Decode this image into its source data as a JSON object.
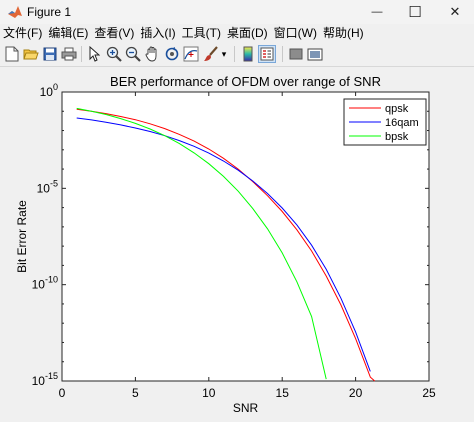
{
  "window": {
    "title": "Figure 1",
    "minimize_glyph": "—",
    "maximize_glyph": "☐",
    "close_glyph": "✕"
  },
  "menu": {
    "items": [
      "文件(F)",
      "编辑(E)",
      "查看(V)",
      "插入(I)",
      "工具(T)",
      "桌面(D)",
      "窗口(W)",
      "帮助(H)"
    ]
  },
  "toolbar": {
    "buttons": [
      "new-figure-icon",
      "open-file-icon",
      "save-icon",
      "print-icon",
      "pointer-icon",
      "zoom-in-icon",
      "zoom-out-icon",
      "pan-icon",
      "rotate-icon",
      "data-cursor-icon",
      "brush-icon",
      "colorbar-icon",
      "legend-icon",
      "hide-plot-tools-icon",
      "show-plot-tools-icon"
    ],
    "dropdown_glyph": "▾"
  },
  "chart_data": {
    "type": "line",
    "title": "BER performance of OFDM over range of SNR",
    "xlabel": "SNR",
    "ylabel": "Bit Error Rate",
    "xlim": [
      0,
      25
    ],
    "ylim_log10": [
      -15,
      0
    ],
    "yscale": "log",
    "grid": false,
    "x_ticks": [
      0,
      5,
      10,
      15,
      20,
      25
    ],
    "x_tick_labels": [
      "0",
      "5",
      "10",
      "15",
      "20",
      "25"
    ],
    "y_ticks_log10": [
      0,
      -5,
      -10,
      -15
    ],
    "y_tick_labels": [
      {
        "base": "10",
        "exp": "0"
      },
      {
        "base": "10",
        "exp": "-5"
      },
      {
        "base": "10",
        "exp": "-10"
      },
      {
        "base": "10",
        "exp": "-15"
      }
    ],
    "legend_position": "top-right",
    "series": [
      {
        "name": "qpsk",
        "color": "#ff0000",
        "x": [
          1,
          2,
          3,
          4,
          5,
          6,
          7,
          8,
          9,
          10,
          11,
          12,
          13,
          14,
          15,
          16,
          17,
          18,
          19,
          20,
          21,
          21.3
        ],
        "log10_y": [
          -0.9,
          -1.0,
          -1.12,
          -1.27,
          -1.44,
          -1.65,
          -1.9,
          -2.2,
          -2.55,
          -2.96,
          -3.44,
          -4.0,
          -4.65,
          -5.38,
          -6.2,
          -7.15,
          -8.25,
          -9.55,
          -11.05,
          -12.8,
          -14.8,
          -15.0
        ]
      },
      {
        "name": "16qam",
        "color": "#0000ff",
        "x": [
          1,
          2,
          3,
          4,
          5,
          6,
          7,
          8,
          9,
          10,
          11,
          12,
          13,
          14,
          15,
          16,
          17,
          18,
          19,
          20,
          21
        ],
        "log10_y": [
          -1.35,
          -1.45,
          -1.57,
          -1.71,
          -1.87,
          -2.05,
          -2.27,
          -2.52,
          -2.82,
          -3.17,
          -3.58,
          -4.06,
          -4.62,
          -5.27,
          -6.02,
          -6.9,
          -7.95,
          -9.2,
          -10.7,
          -12.45,
          -14.5
        ]
      },
      {
        "name": "bpsk",
        "color": "#00ff00",
        "x": [
          1,
          2,
          3,
          4,
          5,
          6,
          7,
          8,
          9,
          10,
          11,
          12,
          13,
          14,
          15,
          16,
          17,
          18
        ],
        "log10_y": [
          -0.85,
          -1.0,
          -1.17,
          -1.38,
          -1.63,
          -1.92,
          -2.27,
          -2.68,
          -3.16,
          -3.72,
          -4.38,
          -5.15,
          -6.05,
          -7.1,
          -8.35,
          -9.85,
          -11.65,
          -14.9
        ]
      }
    ]
  }
}
